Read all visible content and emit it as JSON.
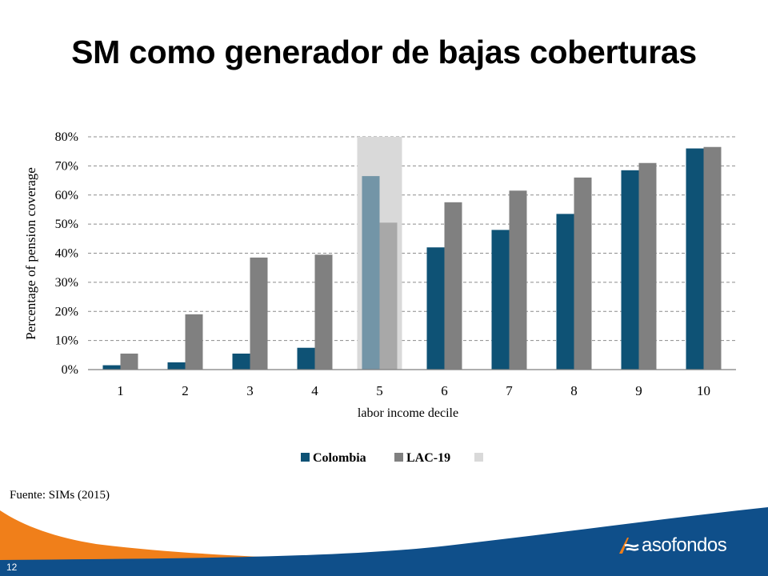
{
  "slide": {
    "title": "SM como generador de bajas coberturas",
    "source": "Fuente: SIMs (2015)",
    "page_number": "12",
    "logo_text": "asofondos"
  },
  "colors": {
    "colombia": "#0e5275",
    "lac": "#808080",
    "highlight": "#d9d9d9",
    "footer_blue": "#0f4f8a",
    "footer_orange": "#f07f1a"
  },
  "chart_data": {
    "type": "bar",
    "title": "",
    "xlabel": "labor income decile",
    "ylabel": "Percentage of pension coverage",
    "categories": [
      "1",
      "2",
      "3",
      "4",
      "5",
      "6",
      "7",
      "8",
      "9",
      "10"
    ],
    "ylim": [
      0,
      80
    ],
    "yticks": [
      "0%",
      "10%",
      "20%",
      "30%",
      "40%",
      "50%",
      "60%",
      "70%",
      "80%"
    ],
    "grid": true,
    "highlight_category": "5",
    "legend_position": "bottom",
    "legend": [
      "Colombia",
      "LAC-19",
      ""
    ],
    "series": [
      {
        "name": "Colombia",
        "values": [
          1.5,
          2.5,
          5.5,
          7.5,
          66.5,
          42,
          48,
          53.5,
          68.5,
          76
        ]
      },
      {
        "name": "LAC-19",
        "values": [
          5.5,
          19,
          38.5,
          39.5,
          50.5,
          57.5,
          61.5,
          66,
          71,
          76.5
        ]
      }
    ]
  }
}
